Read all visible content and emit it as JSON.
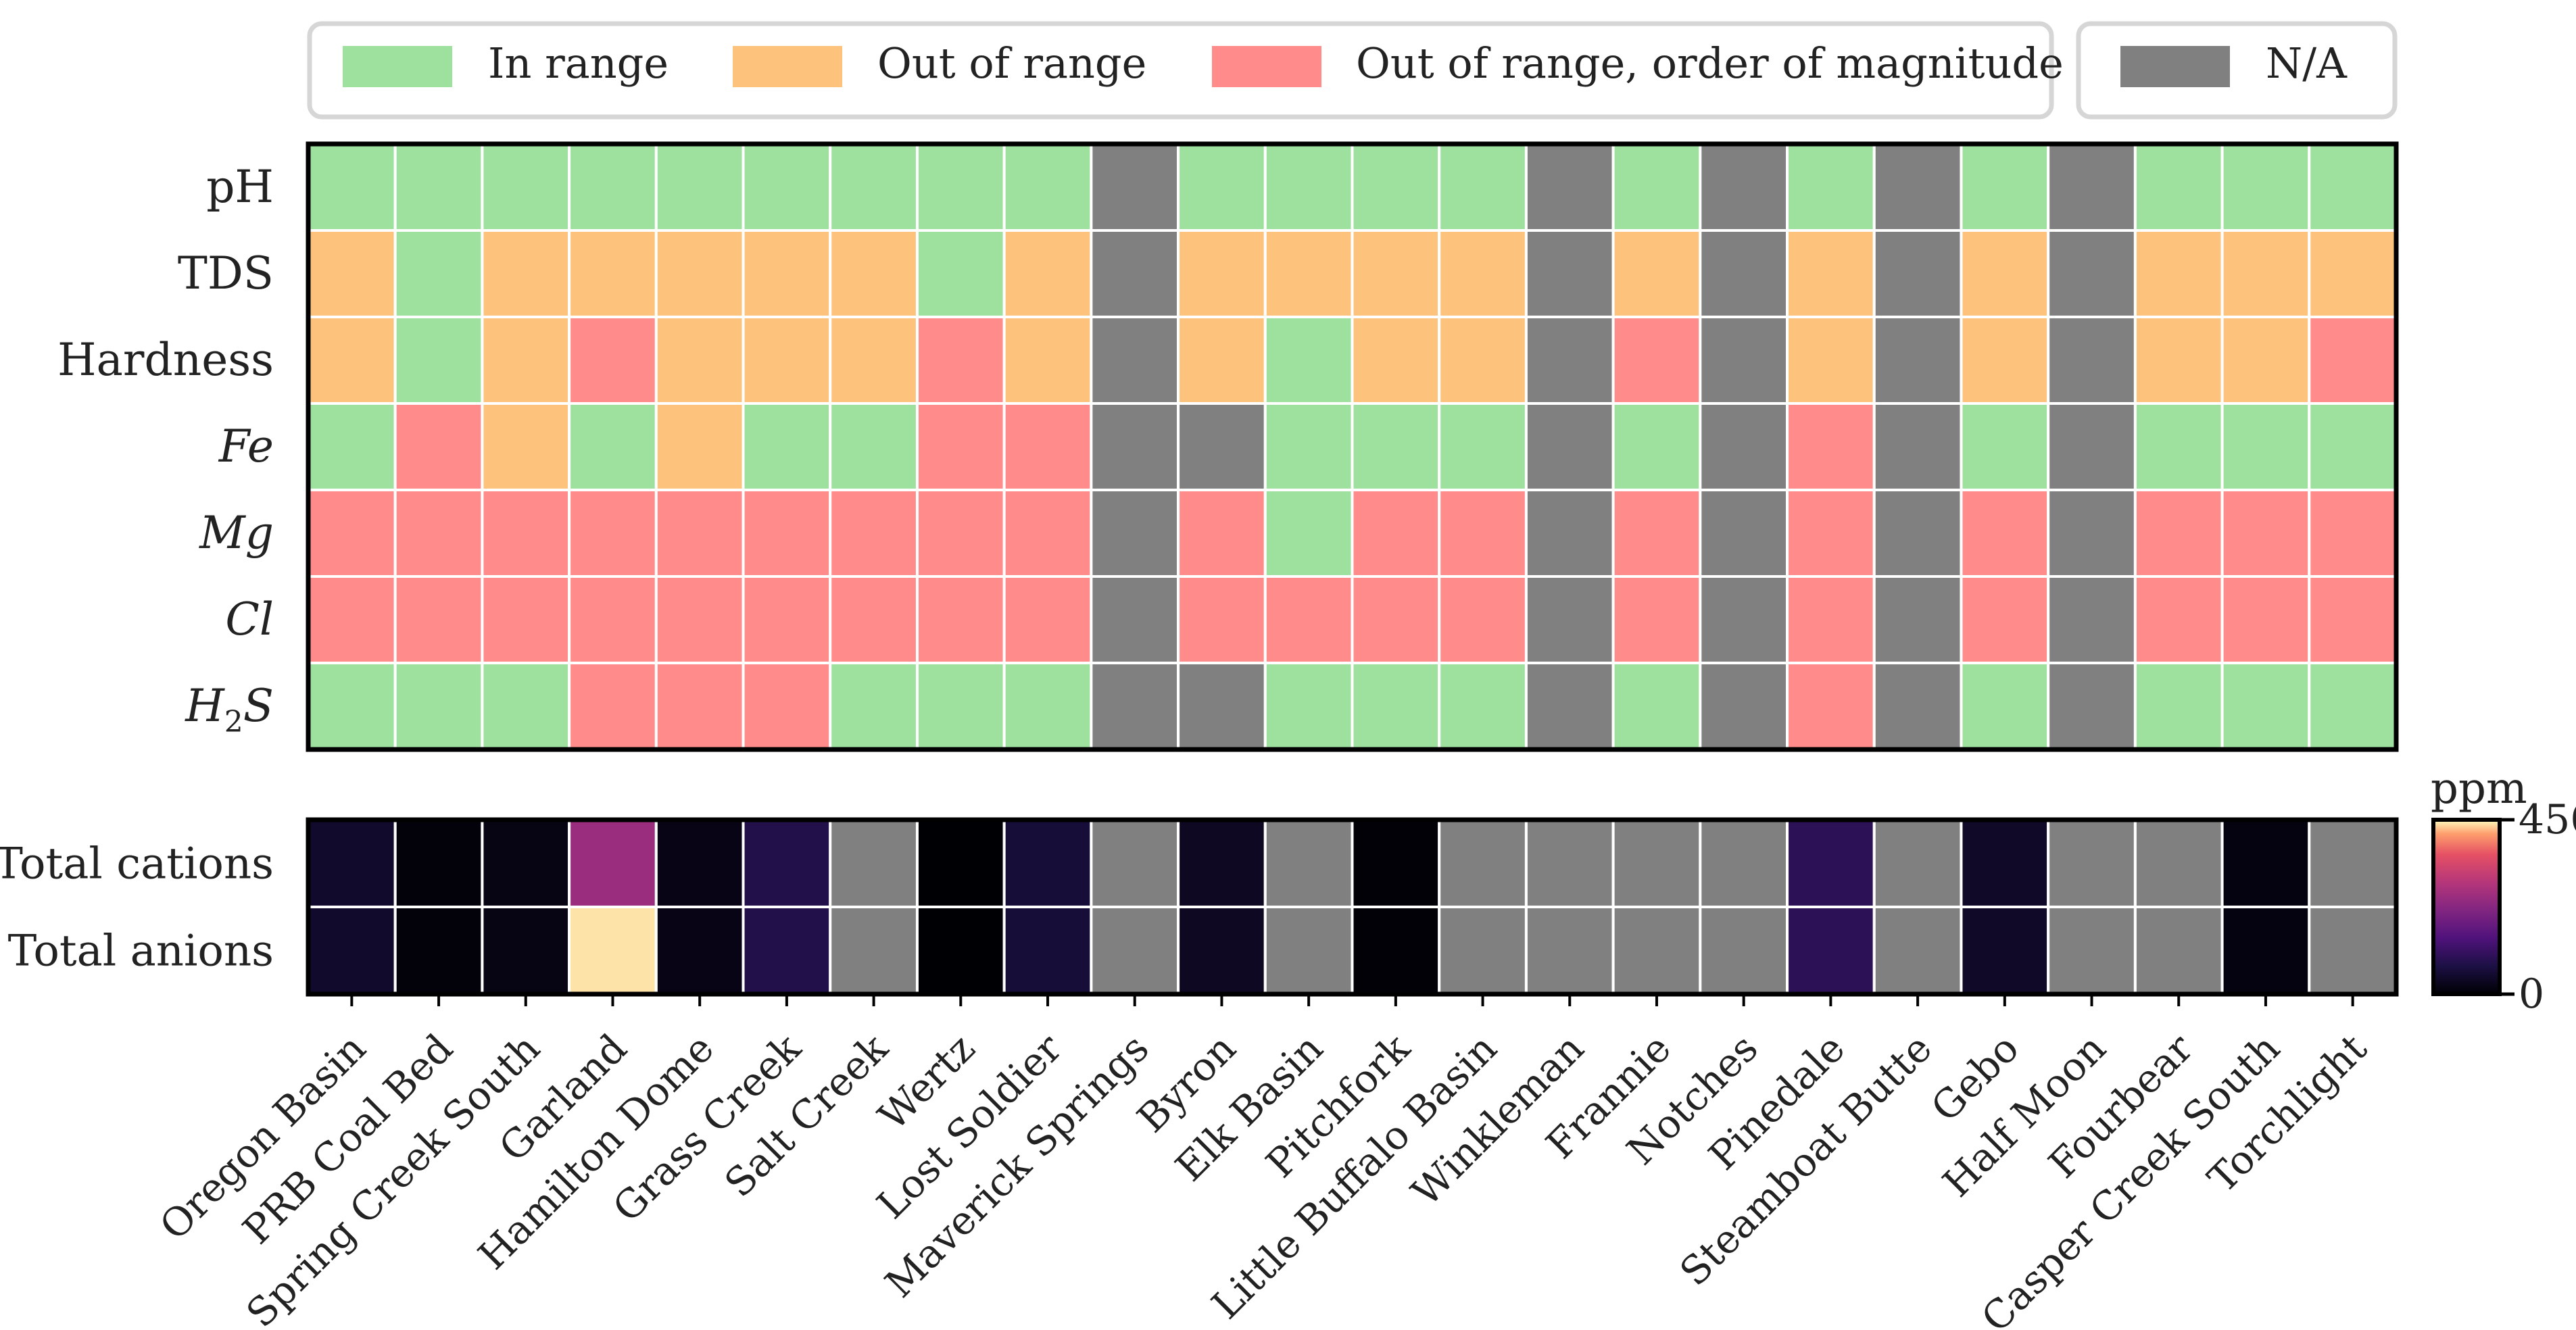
{
  "chart_data": [
    {
      "type": "heatmap",
      "legend": {
        "placement": "top",
        "entries": [
          {
            "label": "In range",
            "color": "#9EE09E"
          },
          {
            "label": "Out of range",
            "color": "#FDC37D"
          },
          {
            "label": "Out of range, order of magnitude",
            "color": "#FF8B8B"
          },
          {
            "label": "N/A",
            "color": "#808080"
          }
        ]
      },
      "categories": [
        "Oregon Basin",
        "PRB Coal Bed",
        "Spring Creek South",
        "Garland",
        "Hamilton Dome",
        "Grass Creek",
        "Salt Creek",
        "Wertz",
        "Lost Soldier",
        "Maverick Springs",
        "Byron",
        "Elk Basin",
        "Pitchfork",
        "Little Buffalo Basin",
        "Winkleman",
        "Frannie",
        "Notches",
        "Pinedale",
        "Steamboat Butte",
        "Gebo",
        "Half Moon",
        "Fourbear",
        "Casper Creek South",
        "Torchlight"
      ],
      "rows": [
        "pH",
        "TDS",
        "Hardness",
        "Fe",
        "Mg",
        "Cl",
        "H2S"
      ],
      "row_labels_display": [
        {
          "label": "pH",
          "style": "normal"
        },
        {
          "label": "TDS",
          "style": "normal"
        },
        {
          "label": "Hardness",
          "style": "normal"
        },
        {
          "label": "Fe",
          "style": "italic"
        },
        {
          "label": "Mg",
          "style": "italic"
        },
        {
          "label": "Cl",
          "style": "italic"
        },
        {
          "label": "H2S",
          "style": "italic"
        }
      ],
      "status_codes": {
        "G": "In range",
        "O": "Out of range",
        "R": "Out of range, order of magnitude",
        "N": "N/A"
      },
      "status_colors": {
        "G": "#9EE09E",
        "O": "#FDC37D",
        "R": "#FF8B8B",
        "N": "#808080"
      },
      "matrix": [
        [
          "G",
          "G",
          "G",
          "G",
          "G",
          "G",
          "G",
          "G",
          "G",
          "N",
          "G",
          "G",
          "G",
          "G",
          "N",
          "G",
          "N",
          "G",
          "N",
          "G",
          "N",
          "G",
          "G",
          "G"
        ],
        [
          "O",
          "G",
          "O",
          "O",
          "O",
          "O",
          "O",
          "G",
          "O",
          "N",
          "O",
          "O",
          "O",
          "O",
          "N",
          "O",
          "N",
          "O",
          "N",
          "O",
          "N",
          "O",
          "O",
          "O"
        ],
        [
          "O",
          "G",
          "O",
          "R",
          "O",
          "O",
          "O",
          "R",
          "O",
          "N",
          "O",
          "G",
          "O",
          "O",
          "N",
          "R",
          "N",
          "O",
          "N",
          "O",
          "N",
          "O",
          "O",
          "R"
        ],
        [
          "G",
          "R",
          "O",
          "G",
          "O",
          "G",
          "G",
          "R",
          "R",
          "N",
          "N",
          "G",
          "G",
          "G",
          "N",
          "G",
          "N",
          "R",
          "N",
          "G",
          "N",
          "G",
          "G",
          "G"
        ],
        [
          "R",
          "R",
          "R",
          "R",
          "R",
          "R",
          "R",
          "R",
          "R",
          "N",
          "R",
          "G",
          "R",
          "R",
          "N",
          "R",
          "N",
          "R",
          "N",
          "R",
          "N",
          "R",
          "R",
          "R"
        ],
        [
          "R",
          "R",
          "R",
          "R",
          "R",
          "R",
          "R",
          "R",
          "R",
          "N",
          "R",
          "R",
          "R",
          "R",
          "N",
          "R",
          "N",
          "R",
          "N",
          "R",
          "N",
          "R",
          "R",
          "R"
        ],
        [
          "G",
          "G",
          "G",
          "R",
          "R",
          "R",
          "G",
          "G",
          "G",
          "N",
          "N",
          "G",
          "G",
          "G",
          "N",
          "G",
          "N",
          "R",
          "N",
          "G",
          "N",
          "G",
          "G",
          "G"
        ]
      ]
    },
    {
      "type": "heatmap",
      "categories": [
        "Oregon Basin",
        "PRB Coal Bed",
        "Spring Creek South",
        "Garland",
        "Hamilton Dome",
        "Grass Creek",
        "Salt Creek",
        "Wertz",
        "Lost Soldier",
        "Maverick Springs",
        "Byron",
        "Elk Basin",
        "Pitchfork",
        "Little Buffalo Basin",
        "Winkleman",
        "Frannie",
        "Notches",
        "Pinedale",
        "Steamboat Butte",
        "Gebo",
        "Half Moon",
        "Fourbear",
        "Casper Creek South",
        "Torchlight"
      ],
      "rows": [
        "Total cations",
        "Total anions"
      ],
      "values": [
        [
          45,
          8,
          18,
          250,
          20,
          80,
          null,
          0,
          60,
          null,
          35,
          null,
          5,
          null,
          null,
          null,
          null,
          95,
          null,
          40,
          null,
          null,
          15,
          null
        ],
        [
          45,
          8,
          18,
          440,
          20,
          80,
          null,
          0,
          60,
          null,
          35,
          null,
          5,
          null,
          null,
          null,
          null,
          95,
          null,
          40,
          null,
          null,
          15,
          null
        ]
      ],
      "colorbar": {
        "label": "ppm",
        "min": 0,
        "max": 450,
        "ticks": [
          0,
          450
        ],
        "colormap": "magma",
        "missing_color": "#808080"
      }
    }
  ]
}
